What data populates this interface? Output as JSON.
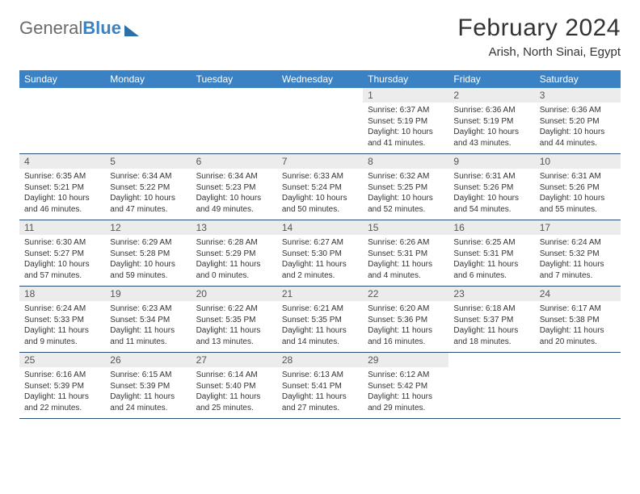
{
  "header": {
    "logo_text_1": "General",
    "logo_text_2": "Blue",
    "title": "February 2024",
    "location": "Arish, North Sinai, Egypt"
  },
  "colors": {
    "header_bar": "#3b82c4",
    "daynum_bg": "#ececec",
    "row_border": "#2a4e73",
    "text": "#333333",
    "logo_gray": "#6b6b6b"
  },
  "day_names": [
    "Sunday",
    "Monday",
    "Tuesday",
    "Wednesday",
    "Thursday",
    "Friday",
    "Saturday"
  ],
  "weeks": [
    [
      {
        "empty": true
      },
      {
        "empty": true
      },
      {
        "empty": true
      },
      {
        "empty": true
      },
      {
        "n": "1",
        "sunrise": "Sunrise: 6:37 AM",
        "sunset": "Sunset: 5:19 PM",
        "day_a": "Daylight: 10 hours",
        "day_b": "and 41 minutes."
      },
      {
        "n": "2",
        "sunrise": "Sunrise: 6:36 AM",
        "sunset": "Sunset: 5:19 PM",
        "day_a": "Daylight: 10 hours",
        "day_b": "and 43 minutes."
      },
      {
        "n": "3",
        "sunrise": "Sunrise: 6:36 AM",
        "sunset": "Sunset: 5:20 PM",
        "day_a": "Daylight: 10 hours",
        "day_b": "and 44 minutes."
      }
    ],
    [
      {
        "n": "4",
        "sunrise": "Sunrise: 6:35 AM",
        "sunset": "Sunset: 5:21 PM",
        "day_a": "Daylight: 10 hours",
        "day_b": "and 46 minutes."
      },
      {
        "n": "5",
        "sunrise": "Sunrise: 6:34 AM",
        "sunset": "Sunset: 5:22 PM",
        "day_a": "Daylight: 10 hours",
        "day_b": "and 47 minutes."
      },
      {
        "n": "6",
        "sunrise": "Sunrise: 6:34 AM",
        "sunset": "Sunset: 5:23 PM",
        "day_a": "Daylight: 10 hours",
        "day_b": "and 49 minutes."
      },
      {
        "n": "7",
        "sunrise": "Sunrise: 6:33 AM",
        "sunset": "Sunset: 5:24 PM",
        "day_a": "Daylight: 10 hours",
        "day_b": "and 50 minutes."
      },
      {
        "n": "8",
        "sunrise": "Sunrise: 6:32 AM",
        "sunset": "Sunset: 5:25 PM",
        "day_a": "Daylight: 10 hours",
        "day_b": "and 52 minutes."
      },
      {
        "n": "9",
        "sunrise": "Sunrise: 6:31 AM",
        "sunset": "Sunset: 5:26 PM",
        "day_a": "Daylight: 10 hours",
        "day_b": "and 54 minutes."
      },
      {
        "n": "10",
        "sunrise": "Sunrise: 6:31 AM",
        "sunset": "Sunset: 5:26 PM",
        "day_a": "Daylight: 10 hours",
        "day_b": "and 55 minutes."
      }
    ],
    [
      {
        "n": "11",
        "sunrise": "Sunrise: 6:30 AM",
        "sunset": "Sunset: 5:27 PM",
        "day_a": "Daylight: 10 hours",
        "day_b": "and 57 minutes."
      },
      {
        "n": "12",
        "sunrise": "Sunrise: 6:29 AM",
        "sunset": "Sunset: 5:28 PM",
        "day_a": "Daylight: 10 hours",
        "day_b": "and 59 minutes."
      },
      {
        "n": "13",
        "sunrise": "Sunrise: 6:28 AM",
        "sunset": "Sunset: 5:29 PM",
        "day_a": "Daylight: 11 hours",
        "day_b": "and 0 minutes."
      },
      {
        "n": "14",
        "sunrise": "Sunrise: 6:27 AM",
        "sunset": "Sunset: 5:30 PM",
        "day_a": "Daylight: 11 hours",
        "day_b": "and 2 minutes."
      },
      {
        "n": "15",
        "sunrise": "Sunrise: 6:26 AM",
        "sunset": "Sunset: 5:31 PM",
        "day_a": "Daylight: 11 hours",
        "day_b": "and 4 minutes."
      },
      {
        "n": "16",
        "sunrise": "Sunrise: 6:25 AM",
        "sunset": "Sunset: 5:31 PM",
        "day_a": "Daylight: 11 hours",
        "day_b": "and 6 minutes."
      },
      {
        "n": "17",
        "sunrise": "Sunrise: 6:24 AM",
        "sunset": "Sunset: 5:32 PM",
        "day_a": "Daylight: 11 hours",
        "day_b": "and 7 minutes."
      }
    ],
    [
      {
        "n": "18",
        "sunrise": "Sunrise: 6:24 AM",
        "sunset": "Sunset: 5:33 PM",
        "day_a": "Daylight: 11 hours",
        "day_b": "and 9 minutes."
      },
      {
        "n": "19",
        "sunrise": "Sunrise: 6:23 AM",
        "sunset": "Sunset: 5:34 PM",
        "day_a": "Daylight: 11 hours",
        "day_b": "and 11 minutes."
      },
      {
        "n": "20",
        "sunrise": "Sunrise: 6:22 AM",
        "sunset": "Sunset: 5:35 PM",
        "day_a": "Daylight: 11 hours",
        "day_b": "and 13 minutes."
      },
      {
        "n": "21",
        "sunrise": "Sunrise: 6:21 AM",
        "sunset": "Sunset: 5:35 PM",
        "day_a": "Daylight: 11 hours",
        "day_b": "and 14 minutes."
      },
      {
        "n": "22",
        "sunrise": "Sunrise: 6:20 AM",
        "sunset": "Sunset: 5:36 PM",
        "day_a": "Daylight: 11 hours",
        "day_b": "and 16 minutes."
      },
      {
        "n": "23",
        "sunrise": "Sunrise: 6:18 AM",
        "sunset": "Sunset: 5:37 PM",
        "day_a": "Daylight: 11 hours",
        "day_b": "and 18 minutes."
      },
      {
        "n": "24",
        "sunrise": "Sunrise: 6:17 AM",
        "sunset": "Sunset: 5:38 PM",
        "day_a": "Daylight: 11 hours",
        "day_b": "and 20 minutes."
      }
    ],
    [
      {
        "n": "25",
        "sunrise": "Sunrise: 6:16 AM",
        "sunset": "Sunset: 5:39 PM",
        "day_a": "Daylight: 11 hours",
        "day_b": "and 22 minutes."
      },
      {
        "n": "26",
        "sunrise": "Sunrise: 6:15 AM",
        "sunset": "Sunset: 5:39 PM",
        "day_a": "Daylight: 11 hours",
        "day_b": "and 24 minutes."
      },
      {
        "n": "27",
        "sunrise": "Sunrise: 6:14 AM",
        "sunset": "Sunset: 5:40 PM",
        "day_a": "Daylight: 11 hours",
        "day_b": "and 25 minutes."
      },
      {
        "n": "28",
        "sunrise": "Sunrise: 6:13 AM",
        "sunset": "Sunset: 5:41 PM",
        "day_a": "Daylight: 11 hours",
        "day_b": "and 27 minutes."
      },
      {
        "n": "29",
        "sunrise": "Sunrise: 6:12 AM",
        "sunset": "Sunset: 5:42 PM",
        "day_a": "Daylight: 11 hours",
        "day_b": "and 29 minutes."
      },
      {
        "empty": true,
        "bar": true
      },
      {
        "empty": true,
        "bar": true
      }
    ]
  ]
}
